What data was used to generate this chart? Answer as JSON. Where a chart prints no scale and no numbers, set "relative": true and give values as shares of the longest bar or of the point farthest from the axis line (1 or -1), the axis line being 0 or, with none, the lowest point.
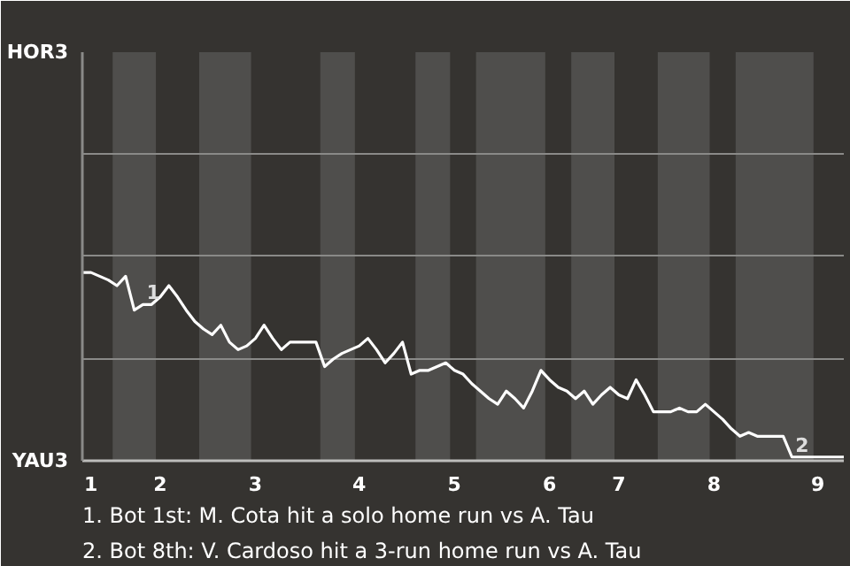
{
  "chart_data": {
    "type": "line",
    "categories": [
      null,
      "1",
      null,
      null,
      null,
      null,
      null,
      null,
      null,
      "2",
      null,
      null,
      null,
      null,
      null,
      null,
      null,
      null,
      null,
      null,
      "3",
      null,
      null,
      null,
      null,
      null,
      null,
      null,
      null,
      null,
      null,
      null,
      "4",
      null,
      null,
      null,
      null,
      null,
      null,
      null,
      null,
      null,
      null,
      "5",
      null,
      null,
      null,
      null,
      null,
      null,
      null,
      null,
      null,
      null,
      "6",
      null,
      null,
      null,
      null,
      null,
      null,
      null,
      "7",
      null,
      null,
      null,
      null,
      null,
      null,
      null,
      null,
      null,
      null,
      "8",
      null,
      null,
      null,
      null,
      null,
      null,
      null,
      null,
      null,
      null,
      null,
      "9",
      null,
      null,
      null
    ],
    "series": [
      {
        "color": "#ffffff",
        "values": [
          1,
          1,
          0.98,
          0.96,
          0.93,
          0.98,
          0.8,
          0.83,
          0.83,
          0.87,
          0.93,
          0.87,
          0.8,
          0.74,
          0.7,
          0.67,
          0.72,
          0.63,
          0.59,
          0.61,
          0.65,
          0.72,
          0.65,
          0.59,
          0.63,
          0.63,
          0.63,
          0.63,
          0.5,
          0.54,
          0.57,
          0.59,
          0.61,
          0.65,
          0.59,
          0.52,
          0.57,
          0.63,
          0.46,
          0.48,
          0.48,
          0.5,
          0.52,
          0.48,
          0.46,
          0.41,
          0.37,
          0.33,
          0.3,
          0.37,
          0.33,
          0.28,
          0.37,
          0.48,
          0.43,
          0.39,
          0.37,
          0.33,
          0.37,
          0.3,
          0.35,
          0.39,
          0.35,
          0.33,
          0.43,
          0.35,
          0.26,
          0.26,
          0.26,
          0.28,
          0.26,
          0.26,
          0.3,
          0.26,
          0.22,
          0.17,
          0.13,
          0.15,
          0.13,
          0.13,
          0.13,
          0.13,
          0.02,
          0.02,
          0.02,
          0.02,
          0.02,
          0.02,
          0.02
        ]
      }
    ],
    "relative": true,
    "ref_lines": [
      {
        "axis": "y",
        "value": 0.54,
        "color": "#8a8a88"
      },
      {
        "axis": "y",
        "value": 1.09,
        "color": "#8a8a88"
      },
      {
        "axis": "y",
        "value": 1.63,
        "color": "#8a8a88"
      }
    ],
    "annotations": [
      "HOR3",
      "YAU3",
      {
        "text": "1",
        "y": 0.83
      },
      {
        "text": "2",
        "y": 0.02
      },
      "1. Bot 1st: M. Cota hit a solo home run vs A. Tau",
      "2. Bot 8th: V. Cardoso hit a 3-run home run vs A. Tau"
    ]
  }
}
